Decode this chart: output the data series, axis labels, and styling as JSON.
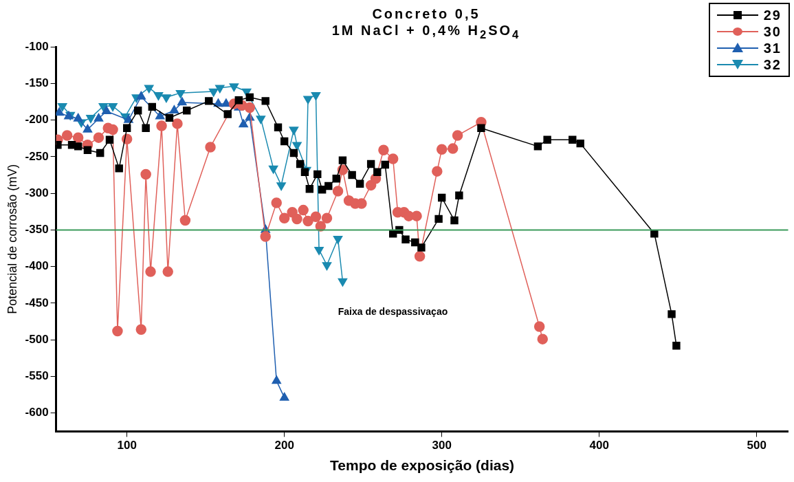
{
  "chart_data": {
    "type": "line",
    "title": "Concreto 0,5",
    "subtitle": "1M NaCl + 0,4% H$_{2}$SO$_{4}$",
    "xlabel": "Tempo de exposição (dias)",
    "ylabel": "Potencial de corrosão (mV)",
    "xlim": [
      55,
      520
    ],
    "xticks": [
      100,
      200,
      300,
      400,
      500
    ],
    "ylim": [
      -625,
      -100
    ],
    "yticks": [
      -100,
      -150,
      -200,
      -250,
      -300,
      -350,
      -400,
      -450,
      -500,
      -550,
      -600
    ],
    "grid": false,
    "legend": "top right",
    "line_style": "solid",
    "ref_lines": [
      {
        "axis": "y",
        "value": -350,
        "color": "#3a9a5a"
      }
    ],
    "annotations": [
      "Faixa de despassivaçao"
    ],
    "series": [
      {
        "name": "29",
        "color": "#000000",
        "marker": "square",
        "x": [
          56,
          65,
          69,
          75,
          83,
          89,
          95,
          100,
          107,
          112,
          116,
          127,
          138,
          152,
          164,
          171,
          178,
          188,
          196,
          200,
          206,
          210,
          213,
          216,
          221,
          224,
          228,
          233,
          237,
          243,
          248,
          255,
          259,
          264,
          269,
          273,
          277,
          283,
          287,
          298,
          300,
          308,
          311,
          325,
          361,
          367,
          383,
          388,
          435,
          446,
          449
        ],
        "values": [
          -234,
          -234,
          -236,
          -241,
          -245,
          -227,
          -266,
          -211,
          -187,
          -211,
          -182,
          -197,
          -187,
          -174,
          -192,
          -173,
          -169,
          -174,
          -210,
          -229,
          -245,
          -260,
          -271,
          -294,
          -274,
          -295,
          -290,
          -280,
          -255,
          -275,
          -287,
          -260,
          -271,
          -261,
          -355,
          -350,
          -363,
          -367,
          -374,
          -335,
          -306,
          -337,
          -303,
          -211,
          -236,
          -227,
          -227,
          -232,
          -355,
          -465,
          -508
        ]
      },
      {
        "name": "30",
        "color": "#e0605a",
        "marker": "circle",
        "x": [
          56,
          62,
          69,
          75,
          82,
          88,
          91,
          94,
          100,
          109,
          112,
          115,
          122,
          126,
          132,
          137,
          153,
          168,
          173,
          178,
          188,
          195,
          200,
          205,
          208,
          212,
          215,
          220,
          223,
          227,
          234,
          237,
          241,
          245,
          249,
          255,
          258,
          263,
          269,
          272,
          276,
          279,
          284,
          286,
          297,
          300,
          307,
          310,
          325,
          362,
          364
        ],
        "values": [
          -227,
          -221,
          -224,
          -234,
          -224,
          -211,
          -213,
          -488,
          -226,
          -486,
          -274,
          -407,
          -208,
          -407,
          -205,
          -337,
          -237,
          -178,
          -180,
          -183,
          -359,
          -313,
          -334,
          -326,
          -335,
          -323,
          -338,
          -332,
          -345,
          -334,
          -297,
          -268,
          -310,
          -314,
          -314,
          -289,
          -280,
          -241,
          -253,
          -326,
          -326,
          -331,
          -331,
          -386,
          -270,
          -240,
          -239,
          -221,
          -203,
          -482,
          -499
        ]
      },
      {
        "name": "31",
        "color": "#1f5fb0",
        "marker": "triangle",
        "x": [
          57,
          63,
          69,
          75,
          82,
          87,
          101,
          109,
          121,
          130,
          135,
          158,
          163,
          171,
          174,
          178,
          188,
          195,
          200
        ],
        "values": [
          -190,
          -195,
          -198,
          -213,
          -198,
          -188,
          -200,
          -168,
          -195,
          -187,
          -176,
          -178,
          -178,
          -183,
          -206,
          -197,
          -350,
          -556,
          -579
        ]
      },
      {
        "name": "32",
        "color": "#1a8ab0",
        "marker": "triangle-down",
        "x": [
          59,
          64,
          71,
          77,
          85,
          91,
          99,
          106,
          114,
          120,
          125,
          134,
          155,
          159,
          168,
          176,
          185,
          193,
          198,
          206,
          208,
          214,
          215,
          220,
          222,
          227,
          234,
          237
        ],
        "values": [
          -181,
          -193,
          -203,
          -197,
          -181,
          -181,
          -195,
          -169,
          -156,
          -166,
          -169,
          -163,
          -161,
          -156,
          -154,
          -161,
          -198,
          -266,
          -289,
          -213,
          -234,
          -268,
          -171,
          -166,
          -377,
          -398,
          -362,
          -420
        ]
      }
    ]
  }
}
